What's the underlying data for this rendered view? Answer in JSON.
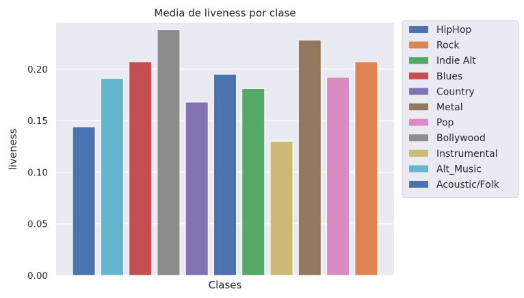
{
  "chart_data": {
    "type": "bar",
    "title": "Media de liveness por clase",
    "xlabel": "Clases",
    "ylabel": "liveness",
    "ylim": [
      0,
      0.245
    ],
    "yticks": [
      "0.00",
      "0.05",
      "0.10",
      "0.15",
      "0.20"
    ],
    "grid": true,
    "legend_position": "outside-right",
    "bars": [
      {
        "value": 0.144,
        "color": "#4c72b0"
      },
      {
        "value": 0.191,
        "color": "#64b5cd"
      },
      {
        "value": 0.207,
        "color": "#c44e52"
      },
      {
        "value": 0.238,
        "color": "#8c8c8c"
      },
      {
        "value": 0.168,
        "color": "#8172b3"
      },
      {
        "value": 0.195,
        "color": "#4c72b0"
      },
      {
        "value": 0.181,
        "color": "#55a868"
      },
      {
        "value": 0.13,
        "color": "#ccb974"
      },
      {
        "value": 0.228,
        "color": "#937860"
      },
      {
        "value": 0.192,
        "color": "#da8bc3"
      },
      {
        "value": 0.207,
        "color": "#dd8452"
      }
    ],
    "legend": [
      {
        "label": "HipHop",
        "color": "#4c72b0"
      },
      {
        "label": "Rock",
        "color": "#dd8452"
      },
      {
        "label": "Indie Alt",
        "color": "#55a868"
      },
      {
        "label": "Blues",
        "color": "#c44e52"
      },
      {
        "label": "Country",
        "color": "#8172b3"
      },
      {
        "label": "Metal",
        "color": "#937860"
      },
      {
        "label": "Pop",
        "color": "#da8bc3"
      },
      {
        "label": "Bollywood",
        "color": "#8c8c8c"
      },
      {
        "label": "Instrumental",
        "color": "#ccb974"
      },
      {
        "label": "Alt_Music",
        "color": "#64b5cd"
      },
      {
        "label": "Acoustic/Folk",
        "color": "#4c72b0"
      }
    ]
  },
  "colors": {
    "plot_background": "#eaeaf2",
    "grid": "#ffffff",
    "text": "#262626"
  }
}
